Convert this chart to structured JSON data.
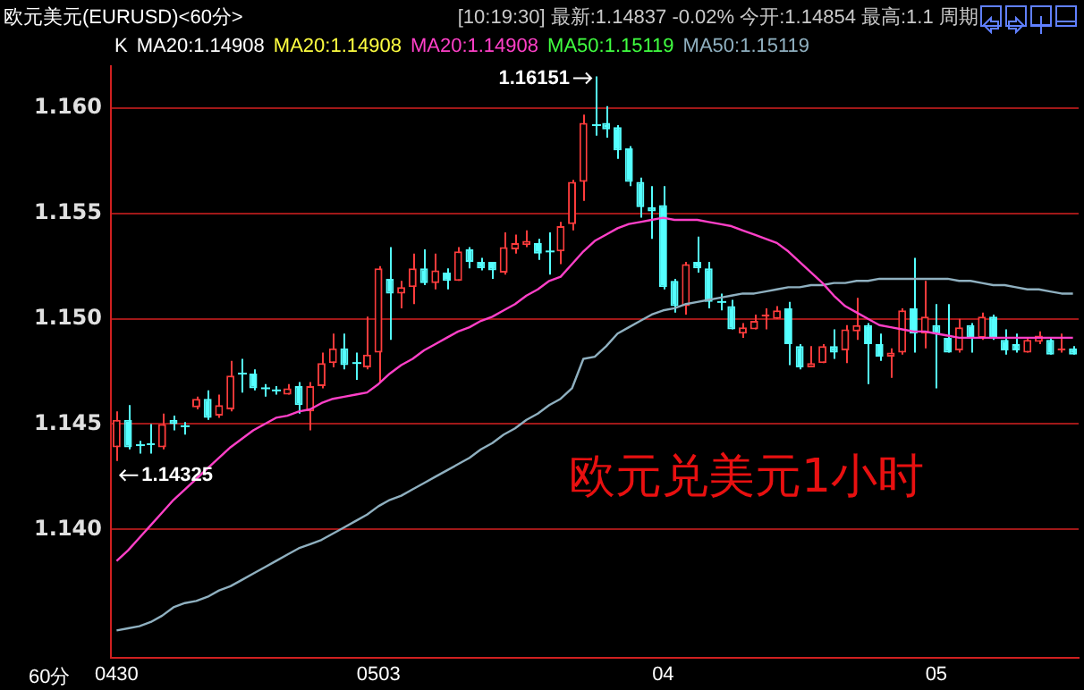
{
  "chart_data": {
    "type": "candlestick",
    "title": "欧元美元(EURUSD)<60分>",
    "subtitle": "[10:19:30] 最新:1.14837 -0.02% 今开:1.14854 最高:1.1 周期",
    "xlabel": "60分",
    "categories": [
      "0430",
      null,
      null,
      null,
      null,
      null,
      null,
      null,
      null,
      null,
      null,
      null,
      null,
      null,
      null,
      null,
      null,
      null,
      null,
      null,
      null,
      null,
      null,
      "0503",
      null,
      null,
      null,
      null,
      null,
      null,
      null,
      null,
      null,
      null,
      null,
      null,
      null,
      null,
      null,
      null,
      null,
      null,
      null,
      null,
      null,
      null,
      null,
      null,
      "04",
      null,
      null,
      null,
      null,
      null,
      null,
      null,
      null,
      null,
      null,
      null,
      null,
      null,
      null,
      null,
      null,
      null,
      null,
      null,
      null,
      null,
      null,
      null,
      "05",
      null,
      null,
      null,
      null,
      null,
      null,
      null,
      null,
      null,
      null,
      null,
      null
    ],
    "ohlc": [
      [
        1.1439,
        1.1456,
        1.14325,
        1.1452
      ],
      [
        1.1452,
        1.1459,
        1.1438,
        1.1439
      ],
      [
        1.144,
        1.1442,
        1.1436,
        1.144
      ],
      [
        1.1441,
        1.145,
        1.1436,
        1.144
      ],
      [
        1.1439,
        1.1455,
        1.1438,
        1.145
      ],
      [
        1.1452,
        1.1454,
        1.1447,
        1.145
      ],
      [
        1.1449,
        1.1451,
        1.1445,
        1.1449
      ],
      [
        1.1458,
        1.1463,
        1.1457,
        1.1462
      ],
      [
        1.1462,
        1.1466,
        1.1452,
        1.1453
      ],
      [
        1.1454,
        1.1464,
        1.1453,
        1.1459
      ],
      [
        1.1457,
        1.148,
        1.1456,
        1.1473
      ],
      [
        1.1474,
        1.1481,
        1.1465,
        1.1474
      ],
      [
        1.1474,
        1.1476,
        1.1466,
        1.1467
      ],
      [
        1.1467,
        1.1469,
        1.1463,
        1.1467
      ],
      [
        1.1466,
        1.1468,
        1.1464,
        1.1466
      ],
      [
        1.1464,
        1.1469,
        1.1464,
        1.1467
      ],
      [
        1.1468,
        1.147,
        1.1455,
        1.1459
      ],
      [
        1.1456,
        1.147,
        1.1447,
        1.1468
      ],
      [
        1.1468,
        1.1484,
        1.1467,
        1.1479
      ],
      [
        1.1479,
        1.1493,
        1.1477,
        1.1486
      ],
      [
        1.1486,
        1.1493,
        1.1476,
        1.1478
      ],
      [
        1.1479,
        1.1484,
        1.1471,
        1.1479
      ],
      [
        1.1477,
        1.1501,
        1.1476,
        1.1483
      ],
      [
        1.1484,
        1.1525,
        1.147,
        1.1524
      ],
      [
        1.1519,
        1.1534,
        1.149,
        1.1512
      ],
      [
        1.1512,
        1.1518,
        1.1505,
        1.1515
      ],
      [
        1.1515,
        1.1531,
        1.1507,
        1.1524
      ],
      [
        1.1524,
        1.1533,
        1.1516,
        1.1517
      ],
      [
        1.1517,
        1.1531,
        1.1514,
        1.1523
      ],
      [
        1.1522,
        1.1524,
        1.1514,
        1.1518
      ],
      [
        1.1518,
        1.1534,
        1.1518,
        1.1532
      ],
      [
        1.1533,
        1.1534,
        1.1524,
        1.1527
      ],
      [
        1.1527,
        1.1529,
        1.1523,
        1.1524
      ],
      [
        1.1527,
        1.1527,
        1.1519,
        1.1523
      ],
      [
        1.1522,
        1.1541,
        1.1521,
        1.1534
      ],
      [
        1.1533,
        1.154,
        1.1531,
        1.1536
      ],
      [
        1.1535,
        1.1542,
        1.1534,
        1.1537
      ],
      [
        1.1536,
        1.1538,
        1.1528,
        1.1531
      ],
      [
        1.1532,
        1.1541,
        1.1521,
        1.1532
      ],
      [
        1.1532,
        1.1546,
        1.1526,
        1.1544
      ],
      [
        1.1545,
        1.1566,
        1.1542,
        1.1565
      ],
      [
        1.1565,
        1.1597,
        1.1556,
        1.1593
      ],
      [
        1.1592,
        1.16151,
        1.1587,
        1.1592
      ],
      [
        1.1593,
        1.1601,
        1.1586,
        1.159
      ],
      [
        1.1591,
        1.1592,
        1.1576,
        1.158
      ],
      [
        1.1581,
        1.1582,
        1.1563,
        1.1565
      ],
      [
        1.1565,
        1.1567,
        1.1548,
        1.1553
      ],
      [
        1.1553,
        1.1563,
        1.1538,
        1.1551
      ],
      [
        1.1554,
        1.1563,
        1.1514,
        1.1515
      ],
      [
        1.1518,
        1.1519,
        1.1503,
        1.1506
      ],
      [
        1.1506,
        1.1527,
        1.1502,
        1.1526
      ],
      [
        1.1527,
        1.1539,
        1.1522,
        1.1524
      ],
      [
        1.1524,
        1.1527,
        1.1505,
        1.1508
      ],
      [
        1.1508,
        1.1512,
        1.1504,
        1.1508
      ],
      [
        1.1506,
        1.1509,
        1.1495,
        1.1495
      ],
      [
        1.1493,
        1.1498,
        1.1491,
        1.1496
      ],
      [
        1.1495,
        1.1502,
        1.1495,
        1.1499
      ],
      [
        1.1501,
        1.1505,
        1.1495,
        1.1502
      ],
      [
        1.15,
        1.1506,
        1.15,
        1.1504
      ],
      [
        1.1505,
        1.1508,
        1.1478,
        1.1488
      ],
      [
        1.1487,
        1.1488,
        1.1476,
        1.1477
      ],
      [
        1.1477,
        1.1487,
        1.1477,
        1.1479
      ],
      [
        1.1479,
        1.1488,
        1.1479,
        1.1487
      ],
      [
        1.1487,
        1.1495,
        1.1481,
        1.1484
      ],
      [
        1.1485,
        1.1497,
        1.1479,
        1.1495
      ],
      [
        1.1494,
        1.151,
        1.149,
        1.1497
      ],
      [
        1.1497,
        1.1498,
        1.1469,
        1.1488
      ],
      [
        1.1488,
        1.1493,
        1.148,
        1.1482
      ],
      [
        1.1482,
        1.1486,
        1.1472,
        1.1484
      ],
      [
        1.1484,
        1.1505,
        1.1483,
        1.1504
      ],
      [
        1.1505,
        1.1529,
        1.1484,
        1.1493
      ],
      [
        1.1493,
        1.1518,
        1.1486,
        1.1501
      ],
      [
        1.1497,
        1.1507,
        1.1467,
        1.1493
      ],
      [
        1.1491,
        1.1507,
        1.1484,
        1.1484
      ],
      [
        1.1485,
        1.15,
        1.1484,
        1.1496
      ],
      [
        1.1497,
        1.1498,
        1.1484,
        1.1491
      ],
      [
        1.1491,
        1.1503,
        1.149,
        1.1501
      ],
      [
        1.1501,
        1.1502,
        1.149,
        1.1491
      ],
      [
        1.149,
        1.1495,
        1.1483,
        1.1485
      ],
      [
        1.1488,
        1.1493,
        1.1484,
        1.1485
      ],
      [
        1.1484,
        1.1491,
        1.1484,
        1.149
      ],
      [
        1.1489,
        1.1494,
        1.1488,
        1.1492
      ],
      [
        1.149,
        1.1491,
        1.1483,
        1.1483
      ],
      [
        1.1485,
        1.1493,
        1.1484,
        1.1486
      ],
      [
        1.1486,
        1.1487,
        1.1483,
        1.1483
      ]
    ],
    "series": [
      {
        "type": "line",
        "name": "MA20:1.14908",
        "color": "#ff40c8",
        "values": [
          1.1385,
          1.139,
          1.1396,
          1.1402,
          1.1408,
          1.1414,
          1.1419,
          1.1424,
          1.1429,
          1.1434,
          1.1439,
          1.1443,
          1.1447,
          1.145,
          1.1453,
          1.1454,
          1.1456,
          1.1457,
          1.146,
          1.1462,
          1.1463,
          1.1464,
          1.1465,
          1.1469,
          1.1474,
          1.1478,
          1.1481,
          1.1485,
          1.1488,
          1.1491,
          1.1494,
          1.1496,
          1.1499,
          1.1501,
          1.1504,
          1.1507,
          1.1511,
          1.1514,
          1.1518,
          1.152,
          1.1526,
          1.1532,
          1.1537,
          1.154,
          1.1543,
          1.1545,
          1.1546,
          1.1547,
          1.1548,
          1.1547,
          1.1547,
          1.1547,
          1.1546,
          1.1545,
          1.1544,
          1.1542,
          1.154,
          1.1538,
          1.1536,
          1.1532,
          1.1527,
          1.1522,
          1.1517,
          1.1511,
          1.1506,
          1.1503,
          1.15,
          1.1497,
          1.1496,
          1.1495,
          1.1494,
          1.1494,
          1.1493,
          1.1492,
          1.1491,
          1.1491,
          1.1491,
          1.1491,
          1.1491,
          1.1491,
          1.1491,
          1.1491,
          1.1491,
          1.1491,
          1.1491
        ]
      },
      {
        "type": "line",
        "name": "MA50:1.15119",
        "color": "#8fb0c0",
        "values": [
          1.1352,
          1.1353,
          1.1354,
          1.1356,
          1.1359,
          1.1363,
          1.1365,
          1.1366,
          1.1368,
          1.1371,
          1.1373,
          1.1376,
          1.1379,
          1.1382,
          1.1385,
          1.1388,
          1.1391,
          1.1393,
          1.1395,
          1.1398,
          1.1401,
          1.1404,
          1.1407,
          1.1411,
          1.1414,
          1.1416,
          1.1419,
          1.1422,
          1.1425,
          1.1428,
          1.1431,
          1.1434,
          1.1438,
          1.1441,
          1.1445,
          1.1448,
          1.1452,
          1.1455,
          1.1459,
          1.1462,
          1.1467,
          1.1481,
          1.1482,
          1.1487,
          1.1493,
          1.1496,
          1.1499,
          1.1502,
          1.1504,
          1.1505,
          1.1507,
          1.1508,
          1.1509,
          1.151,
          1.1511,
          1.1512,
          1.1512,
          1.1513,
          1.1514,
          1.1515,
          1.1515,
          1.1516,
          1.1516,
          1.1517,
          1.1517,
          1.1518,
          1.1518,
          1.1519,
          1.1519,
          1.1519,
          1.1519,
          1.1519,
          1.1519,
          1.1519,
          1.1518,
          1.1518,
          1.1517,
          1.1516,
          1.1516,
          1.1515,
          1.1514,
          1.1514,
          1.1513,
          1.1512,
          1.1512
        ]
      }
    ],
    "ylim": [
      1.1339,
      1.162
    ],
    "yticks": [
      {
        "value": 1.14,
        "label": "1.140"
      },
      {
        "value": 1.145,
        "label": "1.145"
      },
      {
        "value": 1.15,
        "label": "1.150"
      },
      {
        "value": 1.155,
        "label": "1.155"
      },
      {
        "value": 1.16,
        "label": "1.160"
      }
    ],
    "grid": "y",
    "legend": "top",
    "annotations": [
      "K",
      "MA20:1.14908",
      "MA20:1.14908",
      "MA50:1.15119",
      "1.16151",
      "1.14325",
      "欧元兑美元1小时"
    ]
  }
}
